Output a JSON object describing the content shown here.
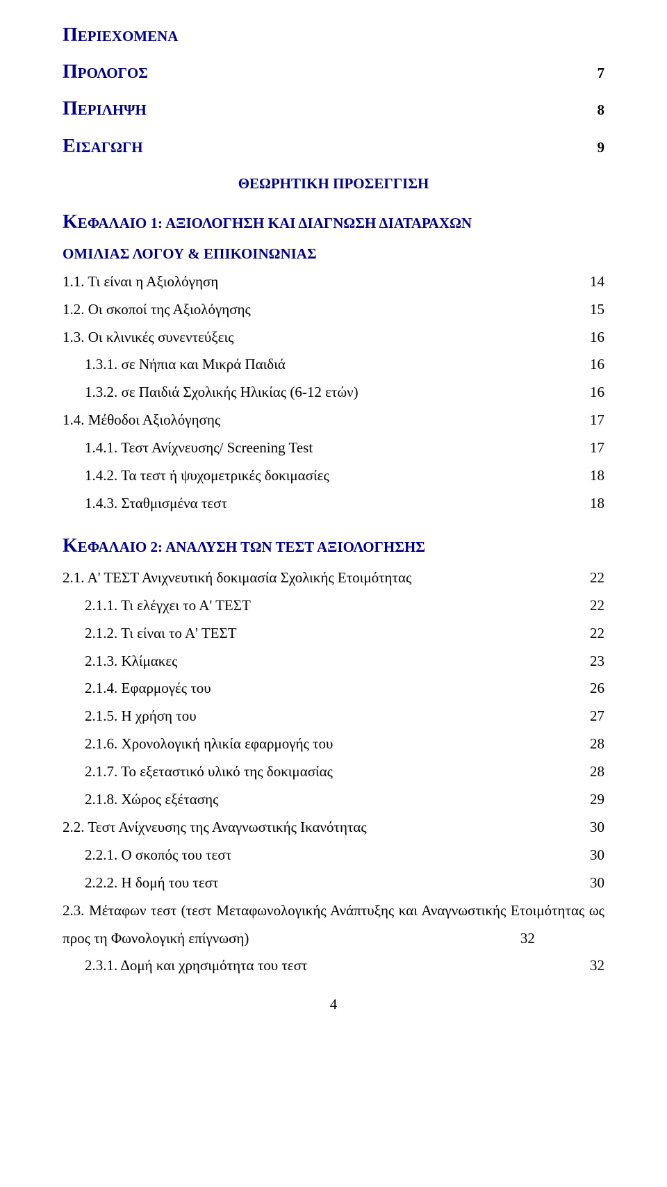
{
  "colors": {
    "heading": "#000080",
    "text": "#000000",
    "background": "#ffffff"
  },
  "typography": {
    "font_family": "Times New Roman",
    "body_fontsize_pt": 16,
    "bigcap_fontsize_pt": 21,
    "line_height": 1.9
  },
  "header": {
    "contents_bigcap": "Π",
    "contents_rest": "ΕΡΙΕΧΟΜΕΝΑ",
    "prologue_bigcap": "Π",
    "prologue_rest": "ΡΟΛΟΓΟΣ",
    "prologue_page": "7",
    "summary_bigcap": "Π",
    "summary_rest": "ΕΡΙΛΗΨΗ",
    "summary_page": "8",
    "intro_bigcap": "Ε",
    "intro_rest": "ΙΣΑΓΩΓΗ",
    "intro_page": "9"
  },
  "section_title": "ΘΕΩΡΗΤΙΚΗ ΠΡΟΣΕΓΓΙΣΗ",
  "chapter1": {
    "bigcap": "Κ",
    "rest_line1": "ΕΦΑΛΑΙΟ 1: ΑΞΙΟΛΟΓΗΣΗ ΚΑΙ ΔΙΑΓΝΩΣΗ ΔΙΑΤΑΡΑΧΩΝ",
    "line2": "ΟΜΙΛΙΑΣ ΛΟΓΟΥ & ΕΠΙΚΟΙΝΩΝΙΑΣ",
    "items": [
      {
        "label": "1.1. Τι είναι η Αξιολόγηση",
        "page": "14",
        "indent": 0
      },
      {
        "label": "1.2. Οι σκοποί της Αξιολόγησης",
        "page": "15",
        "indent": 0,
        "page_shift": true
      },
      {
        "label": "1.3. Οι κλινικές συνεντεύξεις",
        "page": "16",
        "indent": 0
      },
      {
        "label": "1.3.1. σε Νήπια και Μικρά Παιδιά",
        "page": "16",
        "indent": 1
      },
      {
        "label": "1.3.2. σε Παιδιά Σχολικής Ηλικίας (6-12 ετών)",
        "page": "16",
        "indent": 1
      },
      {
        "label": "1.4. Μέθοδοι Αξιολόγησης",
        "page": "17",
        "indent": 0
      },
      {
        "label": "1.4.1. Τεστ Ανίχνευσης/ Screening Test",
        "page": "17",
        "indent": 1
      },
      {
        "label": "1.4.2. Τα τεστ ή ψυχομετρικές δοκιμασίες",
        "page": "18",
        "indent": 1
      },
      {
        "label": "1.4.3. Σταθμισμένα τεστ",
        "page": "18",
        "indent": 1
      }
    ]
  },
  "chapter2": {
    "bigcap": "Κ",
    "rest": "ΕΦΑΛΑΙΟ 2: ΑΝΑΛΥΣΗ ΤΩΝ ΤΕΣΤ ΑΞΙΟΛΟΓΗΣΗΣ",
    "items": [
      {
        "label": "2.1. Α' ΤΕΣΤ Ανιχνευτική δοκιμασία Σχολικής Ετοιμότητας",
        "page": "22",
        "indent": 0
      },
      {
        "label": "2.1.1. Τι ελέγχει το Α' ΤΕΣΤ",
        "page": "22",
        "indent": 1
      },
      {
        "label": "2.1.2. Τι είναι το Α' ΤΕΣΤ",
        "page": "22",
        "indent": 1
      },
      {
        "label": "2.1.3. Κλίμακες",
        "page": "23",
        "indent": 1
      },
      {
        "label": "2.1.4. Εφαρμογές του",
        "page": "26",
        "indent": 1
      },
      {
        "label": "2.1.5. Η χρήση του",
        "page": "27",
        "indent": 1
      },
      {
        "label": "2.1.6. Χρονολογική ηλικία εφαρμογής του",
        "page": "28",
        "indent": 1
      },
      {
        "label": "2.1.7. Το εξεταστικό υλικό της δοκιμασίας",
        "page": "28",
        "indent": 1
      },
      {
        "label": "2.1.8. Χώρος εξέτασης",
        "page": "29",
        "indent": 1
      },
      {
        "label": "2.2. Τεστ Ανίχνευσης της Αναγνωστικής Ικανότητας",
        "page": "30",
        "indent": 0
      },
      {
        "label": "2.2.1. Ο σκοπός του τεστ",
        "page": "30",
        "indent": 1
      },
      {
        "label": "2.2.2. Η δομή του τεστ",
        "page": "30",
        "indent": 1
      }
    ],
    "justify_block": {
      "text_before_page": "2.3. Μέταφων τεστ (τεστ Μεταφωνολογικής Ανάπτυξης και Αναγνωστικής Ετοιμότητας ως προς τη Φωνολογική επίγνωση)",
      "page": "32"
    },
    "tail_items": [
      {
        "label": "2.3.1. Δομή και χρησιμότητα του τεστ",
        "page": "32",
        "indent": 1
      }
    ]
  },
  "footer_page_number": "4"
}
